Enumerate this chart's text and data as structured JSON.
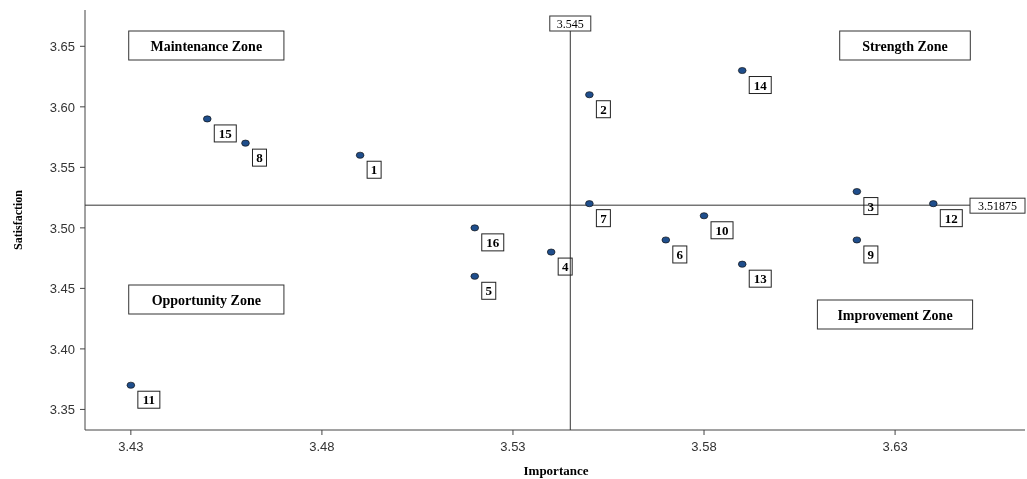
{
  "chart_data": {
    "type": "scatter",
    "xlabel": "Importance",
    "ylabel": "Satisfaction",
    "xlim": [
      3.418,
      3.664
    ],
    "ylim": [
      3.333,
      3.68
    ],
    "xticks": [
      3.43,
      3.48,
      3.53,
      3.58,
      3.63
    ],
    "yticks": [
      3.35,
      {
        "value": 3.4,
        "label": "3.40"
      },
      3.45,
      {
        "value": 3.5,
        "label": "3.50"
      },
      3.55,
      {
        "value": 3.6,
        "label": "3.60"
      },
      3.65
    ],
    "marker": "circle",
    "grid": false,
    "series": [
      {
        "color": "#1f4e8c",
        "x": [
          3.49,
          3.55,
          3.62,
          3.54,
          3.52,
          3.57,
          3.55,
          3.46,
          3.62,
          3.58,
          3.43,
          3.64,
          3.59,
          3.59,
          3.45,
          3.52
        ],
        "values": [
          3.56,
          3.61,
          3.53,
          3.48,
          3.46,
          3.49,
          3.52,
          3.57,
          3.49,
          3.51,
          3.37,
          3.52,
          3.47,
          3.63,
          3.59,
          3.5
        ]
      }
    ],
    "ref_lines": [
      {
        "axis": "x",
        "value": 3.545,
        "label": "3.545"
      },
      {
        "axis": "y",
        "value": 3.51875,
        "label": "3.51875"
      }
    ],
    "annotations": [
      "Maintenance Zone",
      "Strength Zone",
      "Opportunity Zone",
      "Improvement Zone",
      {
        "text": "1",
        "x": 3.49,
        "y": 3.56
      },
      {
        "text": "2",
        "x": 3.55,
        "y": 3.61
      },
      {
        "text": "3",
        "x": 3.62,
        "y": 3.53
      },
      {
        "text": "4",
        "x": 3.54,
        "y": 3.48
      },
      {
        "text": "5",
        "x": 3.52,
        "y": 3.46
      },
      {
        "text": "6",
        "x": 3.57,
        "y": 3.49
      },
      {
        "text": "7",
        "x": 3.55,
        "y": 3.52
      },
      {
        "text": "8",
        "x": 3.46,
        "y": 3.57
      },
      {
        "text": "9",
        "x": 3.62,
        "y": 3.49
      },
      {
        "text": "10",
        "x": 3.58,
        "y": 3.51
      },
      {
        "text": "11",
        "x": 3.43,
        "y": 3.37
      },
      {
        "text": "12",
        "x": 3.64,
        "y": 3.52
      },
      {
        "text": "13",
        "x": 3.59,
        "y": 3.47
      },
      {
        "text": "14",
        "x": 3.59,
        "y": 3.63
      },
      {
        "text": "15",
        "x": 3.45,
        "y": 3.59
      },
      {
        "text": "16",
        "x": 3.52,
        "y": 3.5
      }
    ]
  }
}
